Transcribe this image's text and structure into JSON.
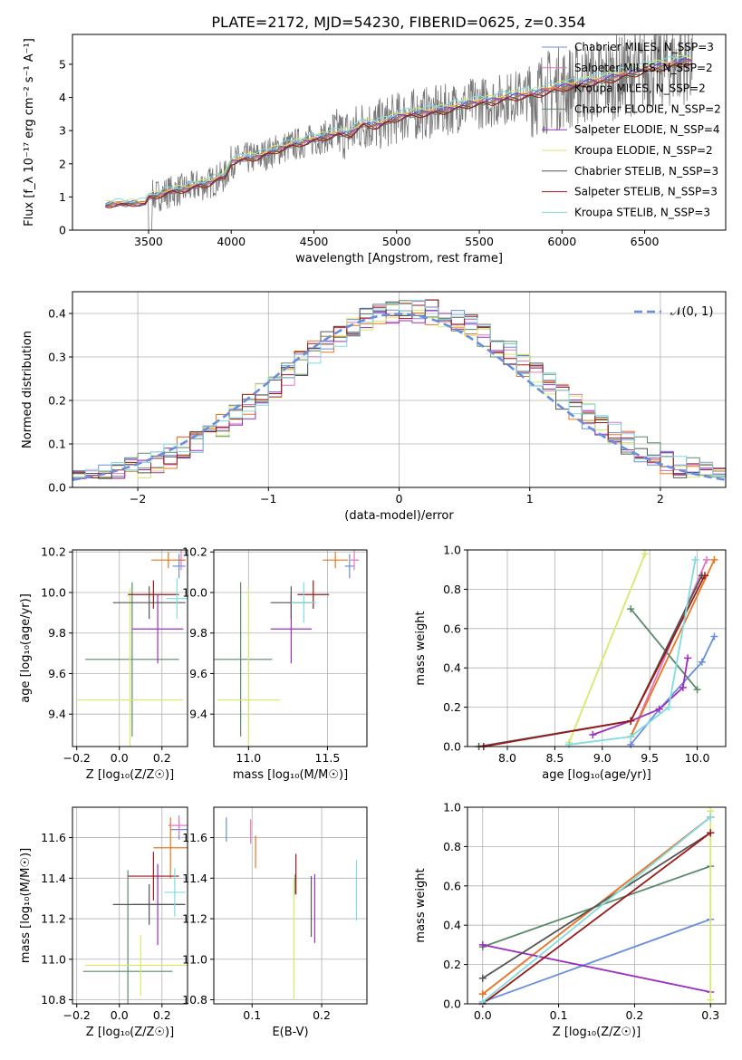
{
  "figure": {
    "title": "PLATE=2172, MJD=54230, FIBERID=0625, z=0.354"
  },
  "colors": {
    "chabrier_miles": "#6a8edc",
    "salpeter_miles": "#e377c2",
    "kroupa_miles": "#e8771e",
    "chabrier_elodie": "#5a8a6a",
    "salpeter_elodie": "#9b30c0",
    "kroupa_elodie": "#d8e86a",
    "chabrier_stelib": "#555555",
    "salpeter_stelib": "#9a1a1a",
    "kroupa_stelib": "#80dce0",
    "data": "#777777",
    "gauss": "#6a8edc",
    "grid": "#b0b0b0"
  },
  "chart_data": [
    {
      "id": "spectrum",
      "type": "line",
      "xlabel": "wavelength [Angstrom, rest frame]",
      "ylabel": "Flux [f_λ 10⁻¹⁷ erg cm⁻² s⁻¹ A⁻¹]",
      "xlim": [
        3040,
        6990
      ],
      "ylim": [
        0,
        5.9
      ],
      "xticks": [
        3500,
        4000,
        4500,
        5000,
        5500,
        6000,
        6500
      ],
      "yticks": [
        0,
        1,
        2,
        3,
        4,
        5
      ],
      "grid": false,
      "legend_position": "top-right",
      "model_points": {
        "x": [
          3240,
          3300,
          3360,
          3420,
          3480,
          3500,
          3560,
          3620,
          3680,
          3740,
          3800,
          3860,
          3920,
          3960,
          4000,
          4080,
          4160,
          4240,
          4320,
          4400,
          4480,
          4560,
          4640,
          4720,
          4800,
          4880,
          4960,
          5040,
          5120,
          5200,
          5280,
          5360,
          5440,
          5520,
          5600,
          5680,
          5760,
          5840,
          5920,
          6000,
          6080,
          6160,
          6240,
          6320,
          6400,
          6480,
          6560,
          6640,
          6720,
          6790
        ],
        "y": [
          0.75,
          0.8,
          0.78,
          0.82,
          0.8,
          1.0,
          1.05,
          1.15,
          1.2,
          1.25,
          1.35,
          1.4,
          1.55,
          1.6,
          2.05,
          2.15,
          2.2,
          2.35,
          2.5,
          2.6,
          2.7,
          2.8,
          2.9,
          2.9,
          3.2,
          3.15,
          3.3,
          3.45,
          3.5,
          3.55,
          3.6,
          3.7,
          3.8,
          3.85,
          3.9,
          4.0,
          4.05,
          4.1,
          4.2,
          4.3,
          4.35,
          4.45,
          4.5,
          4.6,
          4.7,
          4.8,
          4.9,
          4.95,
          5.05,
          5.1
        ]
      },
      "series": [
        {
          "name": "Chabrier MILES, N_SSP=3",
          "color_key": "chabrier_miles",
          "offset": 0.05
        },
        {
          "name": "Salpeter MILES, N_SSP=2",
          "color_key": "salpeter_miles",
          "offset": 0.02
        },
        {
          "name": "Kroupa MILES, N_SSP=2",
          "color_key": "kroupa_miles",
          "offset": 0.0
        },
        {
          "name": "Chabrier ELODIE, N_SSP=2",
          "color_key": "chabrier_elodie",
          "offset": -0.02
        },
        {
          "name": "Salpeter ELODIE, N_SSP=4",
          "color_key": "salpeter_elodie",
          "offset": 0.03
        },
        {
          "name": "Kroupa ELODIE, N_SSP=2",
          "color_key": "kroupa_elodie",
          "offset": 0.12
        },
        {
          "name": "Chabrier STELIB, N_SSP=3",
          "color_key": "chabrier_stelib",
          "offset": -0.04
        },
        {
          "name": "Salpeter STELIB, N_SSP=3",
          "color_key": "salpeter_stelib",
          "offset": -0.06
        },
        {
          "name": "Kroupa STELIB, N_SSP=3",
          "color_key": "kroupa_stelib",
          "offset": 0.15
        }
      ]
    },
    {
      "id": "residuals",
      "type": "line",
      "xlabel": "(data-model)/error",
      "ylabel": "Normed distribution",
      "xlim": [
        -2.5,
        2.5
      ],
      "ylim": [
        0,
        0.45
      ],
      "xticks": [
        -2,
        -1,
        0,
        1,
        2
      ],
      "yticks": [
        0.0,
        0.1,
        0.2,
        0.3,
        0.4
      ],
      "grid": true,
      "legend": "𝒩(0, 1)",
      "legend_position": "top-right",
      "bin_width": 0.1
    },
    {
      "id": "age_vs_Z",
      "type": "scatter",
      "xlabel": "Z [log₁₀(Z/Z☉)]",
      "ylabel": "age [log₁₀(age/yr)]",
      "xlim": [
        -0.22,
        0.32
      ],
      "ylim": [
        9.24,
        10.21
      ],
      "xticks": [
        -0.2,
        0.0,
        0.2
      ],
      "yticks": [
        9.4,
        9.6,
        9.8,
        10.0,
        10.2
      ],
      "grid": true,
      "points": [
        {
          "color_key": "chabrier_miles",
          "x": 0.28,
          "y": 10.13,
          "xerr": 0.03,
          "yerr": 0.06
        },
        {
          "color_key": "salpeter_miles",
          "x": 0.29,
          "y": 10.16,
          "xerr": 0.02,
          "yerr": 0.05
        },
        {
          "color_key": "kroupa_miles",
          "x": 0.23,
          "y": 10.16,
          "xerr": 0.08,
          "yerr": 0.04
        },
        {
          "color_key": "chabrier_elodie",
          "x": 0.06,
          "y": 9.67,
          "xerr": 0.22,
          "yerr": 0.38
        },
        {
          "color_key": "salpeter_elodie",
          "x": 0.18,
          "y": 9.82,
          "xerr": 0.12,
          "yerr": 0.17
        },
        {
          "color_key": "kroupa_elodie",
          "x": 0.05,
          "y": 9.47,
          "xerr": 0.25,
          "yerr": 0.55
        },
        {
          "color_key": "chabrier_stelib",
          "x": 0.14,
          "y": 9.95,
          "xerr": 0.17,
          "yerr": 0.08
        },
        {
          "color_key": "salpeter_stelib",
          "x": 0.16,
          "y": 9.99,
          "xerr": 0.12,
          "yerr": 0.07
        },
        {
          "color_key": "kroupa_stelib",
          "x": 0.27,
          "y": 9.97,
          "xerr": 0.05,
          "yerr": 0.1
        }
      ]
    },
    {
      "id": "age_vs_mass",
      "type": "scatter",
      "xlabel": "mass [log₁₀(M/M☉)]",
      "ylabel": "",
      "xlim": [
        10.78,
        11.75
      ],
      "ylim": [
        9.24,
        10.21
      ],
      "xticks": [
        11.0,
        11.5
      ],
      "yticks": [
        9.4,
        9.6,
        9.8,
        10.0,
        10.2
      ],
      "grid": true,
      "points": [
        {
          "color_key": "chabrier_miles",
          "x": 11.64,
          "y": 10.13,
          "xerr": 0.03,
          "yerr": 0.06
        },
        {
          "color_key": "salpeter_miles",
          "x": 11.67,
          "y": 10.16,
          "xerr": 0.03,
          "yerr": 0.05
        },
        {
          "color_key": "kroupa_miles",
          "x": 11.55,
          "y": 10.16,
          "xerr": 0.08,
          "yerr": 0.04
        },
        {
          "color_key": "chabrier_elodie",
          "x": 10.95,
          "y": 9.67,
          "xerr": 0.2,
          "yerr": 0.38
        },
        {
          "color_key": "salpeter_elodie",
          "x": 11.27,
          "y": 9.82,
          "xerr": 0.13,
          "yerr": 0.17
        },
        {
          "color_key": "kroupa_elodie",
          "x": 11.0,
          "y": 9.47,
          "xerr": 0.2,
          "yerr": 0.55
        },
        {
          "color_key": "chabrier_stelib",
          "x": 11.27,
          "y": 9.95,
          "xerr": 0.13,
          "yerr": 0.08
        },
        {
          "color_key": "salpeter_stelib",
          "x": 11.41,
          "y": 9.99,
          "xerr": 0.1,
          "yerr": 0.07
        },
        {
          "color_key": "kroupa_stelib",
          "x": 11.35,
          "y": 9.95,
          "xerr": 0.08,
          "yerr": 0.1
        }
      ]
    },
    {
      "id": "weight_vs_age",
      "type": "line",
      "xlabel": "age [log₁₀(age/yr)]",
      "ylabel": "mass weight",
      "xlim": [
        7.58,
        10.3
      ],
      "ylim": [
        0,
        1
      ],
      "xticks": [
        8.0,
        8.5,
        9.0,
        9.5,
        10.0
      ],
      "yticks": [
        0.0,
        0.2,
        0.4,
        0.6,
        0.8,
        1.0
      ],
      "grid": true,
      "series": [
        {
          "color_key": "chabrier_miles",
          "x": [
            9.3,
            9.6,
            10.05,
            10.18
          ],
          "y": [
            0.01,
            0.19,
            0.43,
            0.56
          ]
        },
        {
          "color_key": "salpeter_miles",
          "x": [
            9.3,
            10.1
          ],
          "y": [
            0.05,
            0.95
          ]
        },
        {
          "color_key": "kroupa_miles",
          "x": [
            9.3,
            10.18
          ],
          "y": [
            0.05,
            0.95
          ]
        },
        {
          "color_key": "chabrier_elodie",
          "x": [
            9.3,
            10.0
          ],
          "y": [
            0.7,
            0.29
          ]
        },
        {
          "color_key": "salpeter_elodie",
          "x": [
            8.9,
            9.3,
            9.6,
            9.85,
            9.9
          ],
          "y": [
            0.06,
            0.13,
            0.19,
            0.3,
            0.45
          ]
        },
        {
          "color_key": "kroupa_elodie",
          "x": [
            8.65,
            9.45
          ],
          "y": [
            0.02,
            0.98
          ]
        },
        {
          "color_key": "chabrier_stelib",
          "x": [
            7.7,
            9.3,
            10.05
          ],
          "y": [
            0.0,
            0.13,
            0.87
          ]
        },
        {
          "color_key": "salpeter_stelib",
          "x": [
            7.75,
            9.3,
            10.08
          ],
          "y": [
            0.0,
            0.13,
            0.87
          ]
        },
        {
          "color_key": "kroupa_stelib",
          "x": [
            8.65,
            9.3,
            9.7,
            9.98
          ],
          "y": [
            0.01,
            0.05,
            0.2,
            0.95
          ]
        }
      ]
    },
    {
      "id": "mass_vs_Z",
      "type": "scatter",
      "xlabel": "Z [log₁₀(Z/Z☉)]",
      "ylabel": "mass [log₁₀(M/M☉)]",
      "xlim": [
        -0.22,
        0.32
      ],
      "ylim": [
        10.78,
        11.75
      ],
      "xticks": [
        -0.2,
        0.0,
        0.2
      ],
      "yticks": [
        10.8,
        11.0,
        11.2,
        11.4,
        11.6
      ],
      "grid": true,
      "points": [
        {
          "color_key": "chabrier_miles",
          "x": 0.28,
          "y": 11.64,
          "xerr": 0.04,
          "yerr": 0.05
        },
        {
          "color_key": "salpeter_miles",
          "x": 0.28,
          "y": 11.66,
          "xerr": 0.05,
          "yerr": 0.05
        },
        {
          "color_key": "kroupa_miles",
          "x": 0.24,
          "y": 11.55,
          "xerr": 0.08,
          "yerr": 0.15
        },
        {
          "color_key": "chabrier_elodie",
          "x": 0.04,
          "y": 10.94,
          "xerr": 0.21,
          "yerr": 0.5
        },
        {
          "color_key": "salpeter_elodie",
          "x": 0.18,
          "y": 11.27,
          "xerr": 0.12,
          "yerr": 0.2
        },
        {
          "color_key": "kroupa_elodie",
          "x": 0.1,
          "y": 10.97,
          "xerr": 0.26,
          "yerr": 0.15
        },
        {
          "color_key": "chabrier_stelib",
          "x": 0.14,
          "y": 11.27,
          "xerr": 0.17,
          "yerr": 0.1
        },
        {
          "color_key": "salpeter_stelib",
          "x": 0.16,
          "y": 11.41,
          "xerr": 0.12,
          "yerr": 0.12
        },
        {
          "color_key": "kroupa_stelib",
          "x": 0.26,
          "y": 11.33,
          "xerr": 0.05,
          "yerr": 0.12
        }
      ]
    },
    {
      "id": "mass_vs_ebv",
      "type": "scatter",
      "xlabel": "E(B-V)",
      "ylabel": "",
      "xlim": [
        0.045,
        0.265
      ],
      "ylim": [
        10.78,
        11.75
      ],
      "xticks": [
        0.1,
        0.2
      ],
      "yticks": [
        10.8,
        11.0,
        11.2,
        11.4,
        11.6
      ],
      "grid": true,
      "points": [
        {
          "color_key": "chabrier_miles",
          "x": 0.063,
          "y": 11.64,
          "xerr": 0,
          "yerr": 0.06
        },
        {
          "color_key": "salpeter_miles",
          "x": 0.098,
          "y": 11.63,
          "xerr": 0,
          "yerr": 0.06
        },
        {
          "color_key": "kroupa_miles",
          "x": 0.105,
          "y": 11.53,
          "xerr": 0,
          "yerr": 0.08
        },
        {
          "color_key": "chabrier_elodie",
          "x": 0.162,
          "y": 11.37,
          "xerr": 0,
          "yerr": 0.05
        },
        {
          "color_key": "salpeter_elodie",
          "x": 0.19,
          "y": 11.25,
          "xerr": 0,
          "yerr": 0.17
        },
        {
          "color_key": "kroupa_elodie",
          "x": 0.16,
          "y": 11.1,
          "xerr": 0,
          "yerr": 0.3
        },
        {
          "color_key": "chabrier_stelib",
          "x": 0.185,
          "y": 11.26,
          "xerr": 0,
          "yerr": 0.15
        },
        {
          "color_key": "salpeter_stelib",
          "x": 0.163,
          "y": 11.42,
          "xerr": 0,
          "yerr": 0.1
        },
        {
          "color_key": "kroupa_stelib",
          "x": 0.25,
          "y": 11.34,
          "xerr": 0,
          "yerr": 0.15
        }
      ]
    },
    {
      "id": "weight_vs_Z",
      "type": "line",
      "xlabel": "Z [log₁₀(Z/Z☉)]",
      "ylabel": "mass weight",
      "xlim": [
        -0.02,
        0.32
      ],
      "ylim": [
        0,
        1
      ],
      "xticks": [
        0.0,
        0.1,
        0.2,
        0.3
      ],
      "yticks": [
        0.0,
        0.2,
        0.4,
        0.6,
        0.8,
        1.0
      ],
      "grid": true,
      "series": [
        {
          "color_key": "chabrier_miles",
          "x": [
            0.0,
            0.3
          ],
          "y": [
            0.01,
            0.43
          ]
        },
        {
          "color_key": "salpeter_miles",
          "x": [
            0.0,
            0.3
          ],
          "y": [
            0.05,
            0.95
          ]
        },
        {
          "color_key": "kroupa_miles",
          "x": [
            0.0,
            0.3
          ],
          "y": [
            0.05,
            0.95
          ]
        },
        {
          "color_key": "chabrier_elodie",
          "x": [
            0.0,
            0.3
          ],
          "y": [
            0.29,
            0.7
          ]
        },
        {
          "color_key": "salpeter_elodie",
          "x": [
            0.0,
            0.3
          ],
          "y": [
            0.3,
            0.06
          ]
        },
        {
          "color_key": "kroupa_elodie",
          "x": [
            0.3,
            0.3
          ],
          "y": [
            0.02,
            0.98
          ]
        },
        {
          "color_key": "chabrier_stelib",
          "x": [
            0.0,
            0.3
          ],
          "y": [
            0.13,
            0.87
          ]
        },
        {
          "color_key": "salpeter_stelib",
          "x": [
            0.0,
            0.3
          ],
          "y": [
            0.0,
            0.87
          ]
        },
        {
          "color_key": "kroupa_stelib",
          "x": [
            0.0,
            0.3
          ],
          "y": [
            0.01,
            0.95
          ]
        }
      ]
    }
  ]
}
